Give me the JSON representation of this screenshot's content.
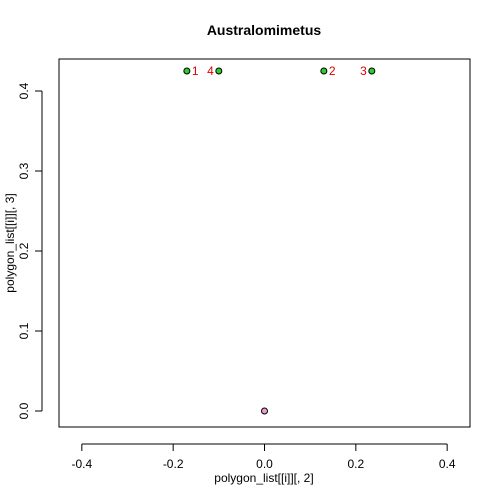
{
  "chart_data": {
    "type": "scatter",
    "title": "Australomimetus",
    "xlabel": "polygon_list[[i]][, 2]",
    "ylabel": "polygon_list[[i]][, 3]",
    "xlim": [
      -0.45,
      0.45
    ],
    "ylim": [
      -0.02,
      0.44
    ],
    "xticks": [
      -0.4,
      -0.2,
      0.0,
      0.2,
      0.4
    ],
    "xtick_labels": [
      "-0.4",
      "-0.2",
      "0.0",
      "0.2",
      "0.4"
    ],
    "yticks": [
      0.0,
      0.1,
      0.2,
      0.3,
      0.4
    ],
    "ytick_labels": [
      "0.0",
      "0.1",
      "0.2",
      "0.3",
      "0.4"
    ],
    "grid": false,
    "legend": "none",
    "series": [
      {
        "color": "#2ecc2e",
        "points": [
          {
            "x": -0.17,
            "y": 0.425,
            "label": "1",
            "label_side": "right"
          },
          {
            "x": 0.13,
            "y": 0.425,
            "label": "2",
            "label_side": "right"
          },
          {
            "x": 0.235,
            "y": 0.425,
            "label": "3",
            "label_side": "left"
          },
          {
            "x": -0.1,
            "y": 0.425,
            "label": "4",
            "label_side": "left"
          }
        ]
      },
      {
        "color": "#e8a0c8",
        "points": [
          {
            "x": 0.0,
            "y": 0.0
          }
        ]
      }
    ],
    "point_label_color": "#e00000"
  }
}
